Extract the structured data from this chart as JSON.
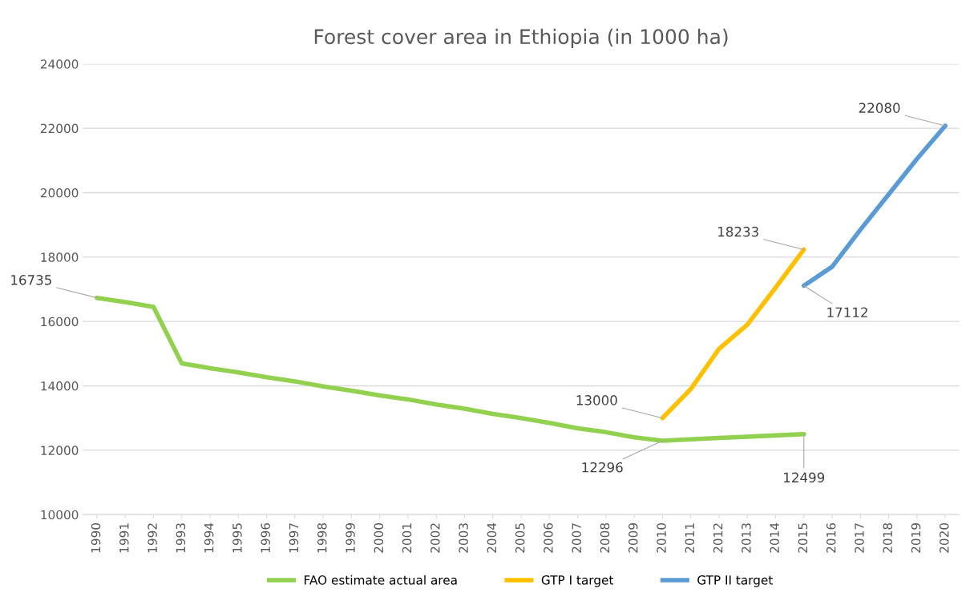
{
  "chart_data": {
    "type": "line",
    "title": "Forest cover area in Ethiopia (in 1000 ha)",
    "categories": [
      "1990",
      "1991",
      "1992",
      "1993",
      "1994",
      "1995",
      "1996",
      "1997",
      "1998",
      "1999",
      "2000",
      "2001",
      "2002",
      "2003",
      "2004",
      "2005",
      "2006",
      "2007",
      "2008",
      "2009",
      "2010",
      "2011",
      "2012",
      "2013",
      "2014",
      "2015",
      "2016",
      "2017",
      "2018",
      "2019",
      "2020"
    ],
    "series": [
      {
        "name": "FAO estimate actual area",
        "color": "#92d050",
        "values": [
          16735,
          16600,
          16450,
          14700,
          14550,
          14420,
          14270,
          14140,
          13980,
          13850,
          13700,
          13580,
          13420,
          13290,
          13130,
          13000,
          12850,
          12680,
          12560,
          12400,
          12296,
          12340,
          12380,
          12420,
          12460,
          12499,
          null,
          null,
          null,
          null,
          null
        ],
        "value_labels": [
          "16735",
          null,
          null,
          null,
          null,
          null,
          null,
          null,
          null,
          null,
          null,
          null,
          null,
          null,
          null,
          null,
          null,
          null,
          null,
          null,
          "12296",
          null,
          null,
          null,
          null,
          "12499",
          null,
          null,
          null,
          null,
          null
        ]
      },
      {
        "name": "GTP I target",
        "color": "#ffc000",
        "values": [
          null,
          null,
          null,
          null,
          null,
          null,
          null,
          null,
          null,
          null,
          null,
          null,
          null,
          null,
          null,
          null,
          null,
          null,
          null,
          null,
          13000,
          13900,
          15150,
          15900,
          17050,
          18233,
          null,
          null,
          null,
          null,
          null
        ],
        "value_labels": [
          null,
          null,
          null,
          null,
          null,
          null,
          null,
          null,
          null,
          null,
          null,
          null,
          null,
          null,
          null,
          null,
          null,
          null,
          null,
          null,
          "13000",
          null,
          null,
          null,
          null,
          "18233",
          null,
          null,
          null,
          null,
          null
        ]
      },
      {
        "name": "GTP II target",
        "color": "#5b9bd5",
        "values": [
          null,
          null,
          null,
          null,
          null,
          null,
          null,
          null,
          null,
          null,
          null,
          null,
          null,
          null,
          null,
          null,
          null,
          null,
          null,
          null,
          null,
          null,
          null,
          null,
          null,
          17112,
          17700,
          18850,
          19950,
          21050,
          22080
        ],
        "value_labels": [
          null,
          null,
          null,
          null,
          null,
          null,
          null,
          null,
          null,
          null,
          null,
          null,
          null,
          null,
          null,
          null,
          null,
          null,
          null,
          null,
          null,
          null,
          null,
          null,
          null,
          "17112",
          null,
          null,
          null,
          null,
          "22080"
        ]
      }
    ],
    "ylim": [
      10000,
      24000
    ],
    "yticks": [
      10000,
      12000,
      14000,
      16000,
      18000,
      20000,
      22000,
      24000
    ],
    "grid": "y",
    "legend": "bottom",
    "marker": "none",
    "line_style": "solid"
  }
}
